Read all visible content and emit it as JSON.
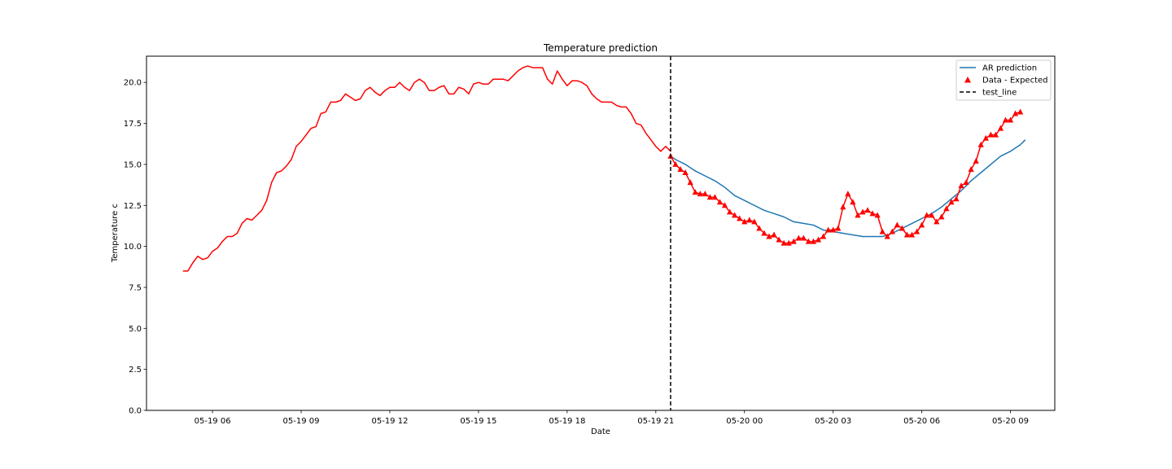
{
  "chart_data": {
    "type": "line",
    "title": "Temperature prediction",
    "xlabel": "Date",
    "ylabel": "Temperature c",
    "x_axis": "datetime",
    "xlim": [
      "2019-05-19 03:46",
      "2019-05-20 10:30"
    ],
    "ylim": [
      0,
      21.6
    ],
    "grid": false,
    "legend_position": "top-right",
    "x_ticks": [
      {
        "at": "2019-05-19 06:00",
        "label": "05-19 06"
      },
      {
        "at": "2019-05-19 09:00",
        "label": "05-19 09"
      },
      {
        "at": "2019-05-19 12:00",
        "label": "05-19 12"
      },
      {
        "at": "2019-05-19 15:00",
        "label": "05-19 15"
      },
      {
        "at": "2019-05-19 18:00",
        "label": "05-19 18"
      },
      {
        "at": "2019-05-19 21:00",
        "label": "05-19 21"
      },
      {
        "at": "2019-05-20 00:00",
        "label": "05-20 00"
      },
      {
        "at": "2019-05-20 03:00",
        "label": "05-20 03"
      },
      {
        "at": "2019-05-20 06:00",
        "label": "05-20 06"
      },
      {
        "at": "2019-05-20 09:00",
        "label": "05-20 09"
      }
    ],
    "y_ticks": [
      {
        "value": 0,
        "label": "0.0"
      },
      {
        "value": 2.5,
        "label": "2.5"
      },
      {
        "value": 5,
        "label": "5.0"
      },
      {
        "value": 7.5,
        "label": "7.5"
      },
      {
        "value": 10,
        "label": "10.0"
      },
      {
        "value": 12.5,
        "label": "12.5"
      },
      {
        "value": 15,
        "label": "15.0"
      },
      {
        "value": 17.5,
        "label": "17.5"
      },
      {
        "value": 20,
        "label": "20.0"
      }
    ],
    "legend": [
      {
        "label": "AR prediction",
        "kind": "line",
        "color": "#1f77b4"
      },
      {
        "label": "Data - Expected",
        "kind": "marker",
        "color": "#ff0000"
      },
      {
        "label": "test_line",
        "kind": "dashed",
        "color": "#000000"
      }
    ],
    "series": [
      {
        "kind": "line",
        "color": "#ff0000",
        "x": [
          "2019-05-19 05:00",
          "2019-05-19 05:10",
          "2019-05-19 05:20",
          "2019-05-19 05:30",
          "2019-05-19 05:40",
          "2019-05-19 05:50",
          "2019-05-19 06:00",
          "2019-05-19 06:10",
          "2019-05-19 06:20",
          "2019-05-19 06:30",
          "2019-05-19 06:40",
          "2019-05-19 06:50",
          "2019-05-19 07:00",
          "2019-05-19 07:10",
          "2019-05-19 07:20",
          "2019-05-19 07:30",
          "2019-05-19 07:40",
          "2019-05-19 07:50",
          "2019-05-19 08:00",
          "2019-05-19 08:10",
          "2019-05-19 08:20",
          "2019-05-19 08:30",
          "2019-05-19 08:40",
          "2019-05-19 08:50",
          "2019-05-19 09:00",
          "2019-05-19 09:10",
          "2019-05-19 09:20",
          "2019-05-19 09:30",
          "2019-05-19 09:40",
          "2019-05-19 09:50",
          "2019-05-19 10:00",
          "2019-05-19 10:10",
          "2019-05-19 10:20",
          "2019-05-19 10:30",
          "2019-05-19 10:40",
          "2019-05-19 10:50",
          "2019-05-19 11:00",
          "2019-05-19 11:10",
          "2019-05-19 11:20",
          "2019-05-19 11:30",
          "2019-05-19 11:40",
          "2019-05-19 11:50",
          "2019-05-19 12:00",
          "2019-05-19 12:10",
          "2019-05-19 12:20",
          "2019-05-19 12:30",
          "2019-05-19 12:40",
          "2019-05-19 12:50",
          "2019-05-19 13:00",
          "2019-05-19 13:10",
          "2019-05-19 13:20",
          "2019-05-19 13:30",
          "2019-05-19 13:40",
          "2019-05-19 13:50",
          "2019-05-19 14:00",
          "2019-05-19 14:10",
          "2019-05-19 14:20",
          "2019-05-19 14:30",
          "2019-05-19 14:40",
          "2019-05-19 14:50",
          "2019-05-19 15:00",
          "2019-05-19 15:10",
          "2019-05-19 15:20",
          "2019-05-19 15:30",
          "2019-05-19 15:40",
          "2019-05-19 15:50",
          "2019-05-19 16:00",
          "2019-05-19 16:10",
          "2019-05-19 16:20",
          "2019-05-19 16:30",
          "2019-05-19 16:40",
          "2019-05-19 16:50",
          "2019-05-19 17:00",
          "2019-05-19 17:10",
          "2019-05-19 17:20",
          "2019-05-19 17:30",
          "2019-05-19 17:40",
          "2019-05-19 17:50",
          "2019-05-19 18:00",
          "2019-05-19 18:10",
          "2019-05-19 18:20",
          "2019-05-19 18:30",
          "2019-05-19 18:40",
          "2019-05-19 18:50",
          "2019-05-19 19:00",
          "2019-05-19 19:10",
          "2019-05-19 19:20",
          "2019-05-19 19:30",
          "2019-05-19 19:40",
          "2019-05-19 19:50",
          "2019-05-19 20:00",
          "2019-05-19 20:10",
          "2019-05-19 20:20",
          "2019-05-19 20:30",
          "2019-05-19 20:40",
          "2019-05-19 20:50",
          "2019-05-19 21:00",
          "2019-05-19 21:10",
          "2019-05-19 21:20",
          "2019-05-19 21:30"
        ],
        "values": [
          8.5,
          8.5,
          9.0,
          9.4,
          9.2,
          9.3,
          9.7,
          9.9,
          10.3,
          10.6,
          10.6,
          10.8,
          11.4,
          11.7,
          11.6,
          11.9,
          12.2,
          12.8,
          13.9,
          14.5,
          14.6,
          14.9,
          15.3,
          16.1,
          16.4,
          16.8,
          17.2,
          17.3,
          18.1,
          18.2,
          18.8,
          18.8,
          18.9,
          19.3,
          19.1,
          18.9,
          19.0,
          19.5,
          19.7,
          19.4,
          19.2,
          19.5,
          19.7,
          19.7,
          20.0,
          19.7,
          19.5,
          20.0,
          20.2,
          20.0,
          19.5,
          19.5,
          19.7,
          19.8,
          19.3,
          19.3,
          19.7,
          19.6,
          19.3,
          19.9,
          20.0,
          19.9,
          19.9,
          20.2,
          20.2,
          20.2,
          20.1,
          20.4,
          20.7,
          20.9,
          21.0,
          20.9,
          20.9,
          20.9,
          20.2,
          19.9,
          20.7,
          20.2,
          19.8,
          20.1,
          20.1,
          20.0,
          19.8,
          19.3,
          19.0,
          18.8,
          18.8,
          18.8,
          18.6,
          18.5,
          18.5,
          18.1,
          17.5,
          17.4,
          16.9,
          16.5,
          16.1,
          15.8,
          16.1,
          15.8
        ]
      },
      {
        "kind": "line",
        "color": "#1f77b4",
        "x": [
          "2019-05-19 21:30",
          "2019-05-19 21:40",
          "2019-05-19 22:00",
          "2019-05-19 22:20",
          "2019-05-19 22:40",
          "2019-05-19 23:00",
          "2019-05-19 23:20",
          "2019-05-19 23:40",
          "2019-05-20 00:00",
          "2019-05-20 00:20",
          "2019-05-20 00:40",
          "2019-05-20 01:00",
          "2019-05-20 01:20",
          "2019-05-20 01:40",
          "2019-05-20 02:00",
          "2019-05-20 02:20",
          "2019-05-20 02:40",
          "2019-05-20 03:00",
          "2019-05-20 03:20",
          "2019-05-20 03:40",
          "2019-05-20 04:00",
          "2019-05-20 04:20",
          "2019-05-20 04:40",
          "2019-05-20 05:00",
          "2019-05-20 05:20",
          "2019-05-20 05:40",
          "2019-05-20 06:00",
          "2019-05-20 06:20",
          "2019-05-20 06:40",
          "2019-05-20 07:00",
          "2019-05-20 07:20",
          "2019-05-20 07:40",
          "2019-05-20 08:00",
          "2019-05-20 08:20",
          "2019-05-20 08:40",
          "2019-05-20 09:00",
          "2019-05-20 09:20",
          "2019-05-20 09:30"
        ],
        "values": [
          15.5,
          15.3,
          15.0,
          14.6,
          14.3,
          14.0,
          13.6,
          13.1,
          12.8,
          12.5,
          12.2,
          12.0,
          11.8,
          11.5,
          11.4,
          11.3,
          11.0,
          10.9,
          10.8,
          10.7,
          10.6,
          10.6,
          10.6,
          10.8,
          11.1,
          11.4,
          11.7,
          12.0,
          12.4,
          12.9,
          13.4,
          14.0,
          14.5,
          15.0,
          15.5,
          15.8,
          16.2,
          16.5
        ]
      },
      {
        "kind": "line+markers",
        "color": "#ff0000",
        "marker": "triangle-up",
        "x": [
          "2019-05-19 21:30",
          "2019-05-19 21:40",
          "2019-05-19 21:50",
          "2019-05-19 22:00",
          "2019-05-19 22:10",
          "2019-05-19 22:20",
          "2019-05-19 22:30",
          "2019-05-19 22:40",
          "2019-05-19 22:50",
          "2019-05-19 23:00",
          "2019-05-19 23:10",
          "2019-05-19 23:20",
          "2019-05-19 23:30",
          "2019-05-19 23:40",
          "2019-05-19 23:50",
          "2019-05-20 00:00",
          "2019-05-20 00:10",
          "2019-05-20 00:20",
          "2019-05-20 00:30",
          "2019-05-20 00:40",
          "2019-05-20 00:50",
          "2019-05-20 01:00",
          "2019-05-20 01:10",
          "2019-05-20 01:20",
          "2019-05-20 01:30",
          "2019-05-20 01:40",
          "2019-05-20 01:50",
          "2019-05-20 02:00",
          "2019-05-20 02:10",
          "2019-05-20 02:20",
          "2019-05-20 02:30",
          "2019-05-20 02:40",
          "2019-05-20 02:50",
          "2019-05-20 03:00",
          "2019-05-20 03:10",
          "2019-05-20 03:20",
          "2019-05-20 03:30",
          "2019-05-20 03:40",
          "2019-05-20 03:50",
          "2019-05-20 04:00",
          "2019-05-20 04:10",
          "2019-05-20 04:20",
          "2019-05-20 04:30",
          "2019-05-20 04:40",
          "2019-05-20 04:50",
          "2019-05-20 05:00",
          "2019-05-20 05:10",
          "2019-05-20 05:20",
          "2019-05-20 05:30",
          "2019-05-20 05:40",
          "2019-05-20 05:50",
          "2019-05-20 06:00",
          "2019-05-20 06:10",
          "2019-05-20 06:20",
          "2019-05-20 06:30",
          "2019-05-20 06:40",
          "2019-05-20 06:50",
          "2019-05-20 07:00",
          "2019-05-20 07:10",
          "2019-05-20 07:20",
          "2019-05-20 07:30",
          "2019-05-20 07:40",
          "2019-05-20 07:50",
          "2019-05-20 08:00",
          "2019-05-20 08:10",
          "2019-05-20 08:20",
          "2019-05-20 08:30",
          "2019-05-20 08:40",
          "2019-05-20 08:50",
          "2019-05-20 09:00",
          "2019-05-20 09:10",
          "2019-05-20 09:20"
        ],
        "values": [
          15.5,
          15.0,
          14.7,
          14.5,
          13.9,
          13.3,
          13.2,
          13.2,
          13.0,
          13.0,
          12.7,
          12.5,
          12.1,
          11.9,
          11.7,
          11.5,
          11.6,
          11.5,
          11.1,
          10.8,
          10.6,
          10.7,
          10.4,
          10.2,
          10.2,
          10.3,
          10.5,
          10.5,
          10.3,
          10.3,
          10.4,
          10.6,
          11.0,
          11.0,
          11.1,
          12.4,
          13.2,
          12.7,
          11.9,
          12.1,
          12.2,
          12.0,
          11.9,
          10.9,
          10.6,
          10.9,
          11.3,
          11.1,
          10.7,
          10.7,
          10.9,
          11.3,
          11.9,
          11.9,
          11.5,
          11.8,
          12.3,
          12.7,
          12.9,
          13.7,
          13.9,
          14.7,
          15.2,
          16.2,
          16.6,
          16.8,
          16.8,
          17.2,
          17.7,
          17.7,
          18.1,
          18.2
        ]
      },
      {
        "kind": "vline",
        "color": "#000000",
        "dashed": true,
        "x": "2019-05-19 21:30"
      }
    ]
  }
}
